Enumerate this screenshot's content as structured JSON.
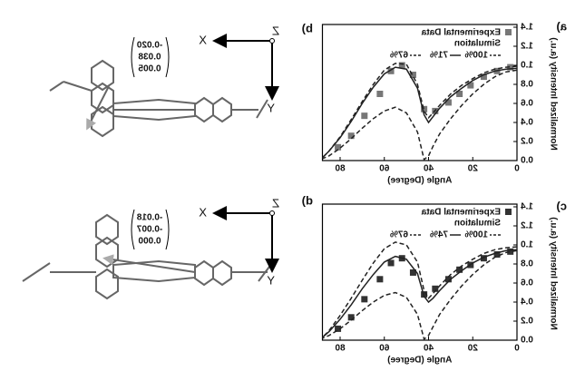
{
  "chart_data": [
    {
      "type": "line",
      "panel_label": "a)",
      "x_label": "Angle (Degree)",
      "y_label": "Normalized Intensity (a.u.)",
      "xlim": [
        0,
        88
      ],
      "xticks": [
        0,
        20,
        40,
        60,
        80
      ],
      "ylim": [
        0,
        1.4
      ],
      "yticks": [
        {
          "value": 0,
          "label": "0.0"
        },
        {
          "value": 0.2,
          "label": "0.2"
        },
        {
          "value": 0.4,
          "label": "0.4"
        },
        {
          "value": 0.6,
          "label": "0.6"
        },
        {
          "value": 0.8,
          "label": "0.8"
        },
        {
          "value": 1,
          "label": "1.0"
        },
        {
          "value": 1.2,
          "label": "1.2"
        },
        {
          "value": 1.4,
          "label": "1.4"
        }
      ],
      "simulation_label": "Simulation",
      "series": [
        {
          "name": "Experimental Data",
          "color": "#777777",
          "marker": "square",
          "x": [
            3,
            9,
            15,
            21,
            26,
            31,
            37,
            42,
            47,
            52,
            57,
            62,
            69,
            75,
            81
          ],
          "values": [
            0.98,
            0.94,
            0.88,
            0.79,
            0.7,
            0.61,
            0.52,
            0.54,
            0.9,
            1.0,
            0.94,
            0.7,
            0.47,
            0.26,
            0.14
          ]
        },
        {
          "name": "100%",
          "color": "#222222",
          "dash": true,
          "x": [
            0,
            5,
            10,
            15,
            20,
            25,
            30,
            35,
            38,
            40,
            42,
            45,
            50,
            55,
            60,
            65,
            70,
            75,
            80,
            85,
            88
          ],
          "values": [
            0.99,
            0.98,
            0.96,
            0.92,
            0.86,
            0.79,
            0.7,
            0.58,
            0.5,
            0.45,
            0.52,
            0.8,
            1.01,
            1.02,
            0.95,
            0.8,
            0.62,
            0.43,
            0.25,
            0.1,
            0.03
          ]
        },
        {
          "name": "71%",
          "color": "#222222",
          "dash": false,
          "x": [
            0,
            5,
            10,
            15,
            20,
            25,
            30,
            35,
            38,
            40,
            42,
            45,
            50,
            55,
            60,
            65,
            70,
            75,
            80,
            85,
            88
          ],
          "values": [
            0.97,
            0.96,
            0.94,
            0.9,
            0.84,
            0.76,
            0.67,
            0.55,
            0.46,
            0.4,
            0.48,
            0.76,
            0.96,
            0.98,
            0.91,
            0.77,
            0.6,
            0.41,
            0.24,
            0.1,
            0.03
          ]
        },
        {
          "name": "67%",
          "color": "#222222",
          "dash": true,
          "x": [
            0,
            5,
            10,
            15,
            20,
            25,
            30,
            35,
            38,
            40,
            42,
            45,
            50,
            55,
            60,
            65,
            70,
            75,
            80,
            85,
            88
          ],
          "values": [
            0.95,
            0.93,
            0.88,
            0.8,
            0.7,
            0.58,
            0.44,
            0.28,
            0.15,
            0.05,
            0.01,
            0.3,
            0.5,
            0.56,
            0.52,
            0.44,
            0.34,
            0.23,
            0.13,
            0.05,
            0.02
          ]
        }
      ]
    },
    {
      "type": "line",
      "panel_label": "c)",
      "x_label": "Angle (Degree)",
      "y_label": "Normalized Intensity (a.u.)",
      "xlim": [
        0,
        88
      ],
      "xticks": [
        0,
        20,
        40,
        60,
        80
      ],
      "ylim": [
        0,
        1.4
      ],
      "yticks": [
        {
          "value": 0,
          "label": "0.0"
        },
        {
          "value": 0.2,
          "label": "0.2"
        },
        {
          "value": 0.4,
          "label": "0.4"
        },
        {
          "value": 0.6,
          "label": "0.6"
        },
        {
          "value": 0.8,
          "label": "0.8"
        },
        {
          "value": 1,
          "label": "1.0"
        },
        {
          "value": 1.2,
          "label": "1.2"
        },
        {
          "value": 1.4,
          "label": "1.4"
        }
      ],
      "simulation_label": "Simulation",
      "series": [
        {
          "name": "Experimental Data",
          "color": "#333333",
          "marker": "square",
          "x": [
            3,
            9,
            15,
            21,
            26,
            31,
            37,
            42,
            47,
            52,
            57,
            62,
            69,
            75,
            81
          ],
          "values": [
            0.93,
            0.9,
            0.86,
            0.79,
            0.74,
            0.64,
            0.54,
            0.48,
            0.71,
            0.86,
            0.81,
            0.64,
            0.43,
            0.24,
            0.12
          ]
        },
        {
          "name": "100%",
          "color": "#222222",
          "dash": true,
          "x": [
            0,
            5,
            10,
            15,
            20,
            25,
            30,
            35,
            38,
            40,
            42,
            45,
            50,
            55,
            60,
            65,
            70,
            75,
            80,
            85,
            88
          ],
          "values": [
            0.98,
            0.97,
            0.95,
            0.91,
            0.85,
            0.78,
            0.69,
            0.57,
            0.49,
            0.44,
            0.52,
            0.82,
            1.0,
            1.03,
            0.96,
            0.81,
            0.63,
            0.44,
            0.26,
            0.1,
            0.03
          ]
        },
        {
          "name": "74%",
          "color": "#222222",
          "dash": false,
          "x": [
            0,
            5,
            10,
            15,
            20,
            25,
            30,
            35,
            38,
            40,
            42,
            45,
            50,
            55,
            60,
            65,
            70,
            75,
            80,
            85,
            88
          ],
          "values": [
            0.95,
            0.94,
            0.91,
            0.87,
            0.81,
            0.73,
            0.64,
            0.52,
            0.44,
            0.4,
            0.46,
            0.7,
            0.85,
            0.88,
            0.82,
            0.69,
            0.54,
            0.37,
            0.22,
            0.09,
            0.03
          ]
        },
        {
          "name": "67%",
          "color": "#222222",
          "dash": true,
          "x": [
            0,
            5,
            10,
            15,
            20,
            25,
            30,
            35,
            38,
            40,
            42,
            45,
            50,
            55,
            60,
            65,
            70,
            75,
            80,
            85,
            88
          ],
          "values": [
            0.94,
            0.92,
            0.87,
            0.79,
            0.69,
            0.57,
            0.43,
            0.27,
            0.14,
            0.05,
            0.01,
            0.27,
            0.45,
            0.5,
            0.47,
            0.4,
            0.31,
            0.21,
            0.12,
            0.05,
            0.02
          ]
        }
      ]
    }
  ],
  "molecules": [
    {
      "panel_label": "b)",
      "axes": {
        "x": "X",
        "y": "Y",
        "z": "Z"
      },
      "vector": [
        "-0.020",
        "0.038",
        "0.005"
      ]
    },
    {
      "panel_label": "d)",
      "axes": {
        "x": "X",
        "y": "Y",
        "z": "Z"
      },
      "vector": [
        "-0.018",
        "-0.007",
        "0.000"
      ]
    }
  ]
}
